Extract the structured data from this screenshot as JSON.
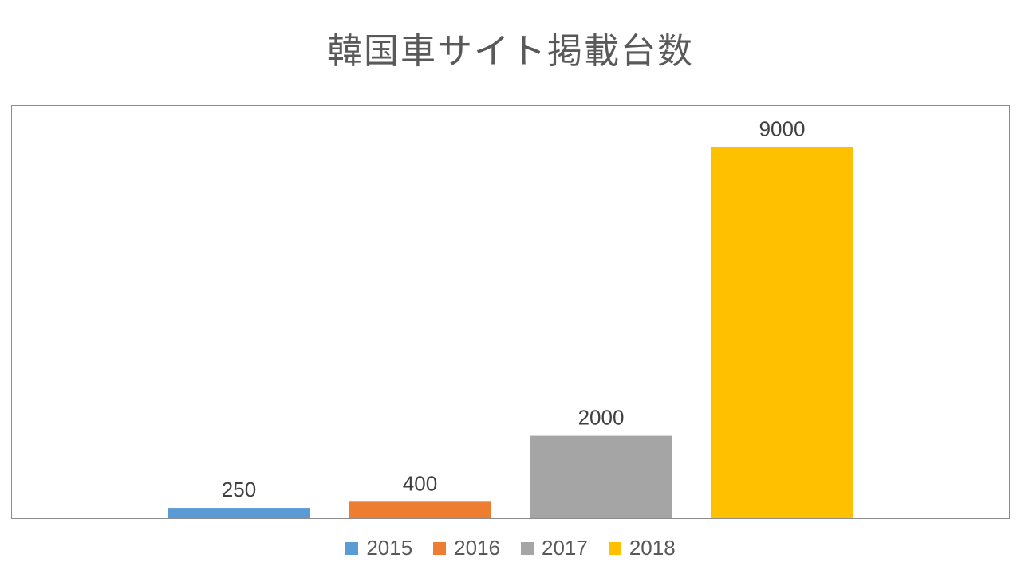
{
  "chart_data": {
    "type": "bar",
    "title": "韓国車サイト掲載台数",
    "xlabel": "",
    "ylabel": "",
    "ylim": [
      0,
      10000
    ],
    "categories": [
      "2015",
      "2016",
      "2017",
      "2018"
    ],
    "values": [
      250,
      400,
      2000,
      9000
    ],
    "value_labels": [
      "250",
      "400",
      "2000",
      "9000"
    ],
    "colors": [
      "#5B9BD5",
      "#ED7D31",
      "#A5A5A5",
      "#FFC000"
    ],
    "grid": false,
    "show_y_axis": false,
    "legend": {
      "position": "bottom",
      "entries": [
        {
          "label": "2015",
          "color": "#5B9BD5"
        },
        {
          "label": "2016",
          "color": "#ED7D31"
        },
        {
          "label": "2017",
          "color": "#A5A5A5"
        },
        {
          "label": "2018",
          "color": "#FFC000"
        }
      ]
    },
    "plot_border_color": "#8C8C8C"
  }
}
